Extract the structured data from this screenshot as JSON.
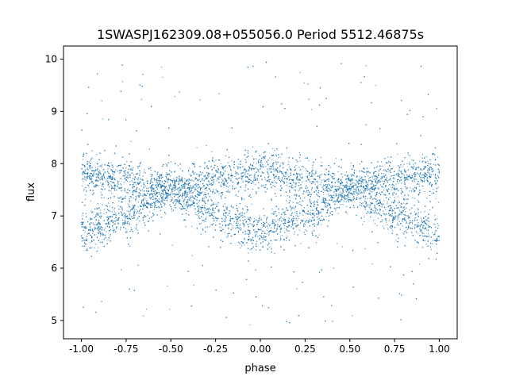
{
  "chart_data": {
    "type": "scatter",
    "title": "1SWASPJ162309.08+055056.0 Period 5512.46875s",
    "xlabel": "phase",
    "ylabel": "flux",
    "xlim": [
      -1.1,
      1.1
    ],
    "ylim": [
      4.65,
      10.25
    ],
    "xticks": [
      "-1.00",
      "-0.75",
      "-0.50",
      "-0.25",
      "0.00",
      "0.25",
      "0.50",
      "0.75",
      "1.00"
    ],
    "xtick_values": [
      -1.0,
      -0.75,
      -0.5,
      -0.25,
      0.0,
      0.25,
      0.5,
      0.75,
      1.0
    ],
    "yticks": [
      "5",
      "6",
      "7",
      "8",
      "9",
      "10"
    ],
    "ytick_values": [
      5,
      6,
      7,
      8,
      9,
      10
    ],
    "grid": false,
    "series": [
      {
        "marker_color": "#1f77b4",
        "x_range": [
          -1.0,
          1.0
        ],
        "envelope": {
          "upper_branch": {
            "phase": [
              -1.0,
              -0.75,
              -0.5,
              -0.25,
              0.0,
              0.25,
              0.5,
              0.75,
              1.0
            ],
            "flux": [
              7.8,
              7.7,
              7.5,
              7.7,
              7.85,
              7.7,
              7.5,
              7.7,
              7.8
            ]
          },
          "lower_branch": {
            "phase": [
              -1.0,
              -0.75,
              -0.5,
              -0.25,
              0.0,
              0.25,
              0.5,
              0.75,
              1.0
            ],
            "flux": [
              6.7,
              7.0,
              7.5,
              7.0,
              6.7,
              7.0,
              7.5,
              7.0,
              6.7
            ]
          }
        },
        "outlier_flux_range": [
          4.9,
          10.0
        ]
      }
    ]
  }
}
